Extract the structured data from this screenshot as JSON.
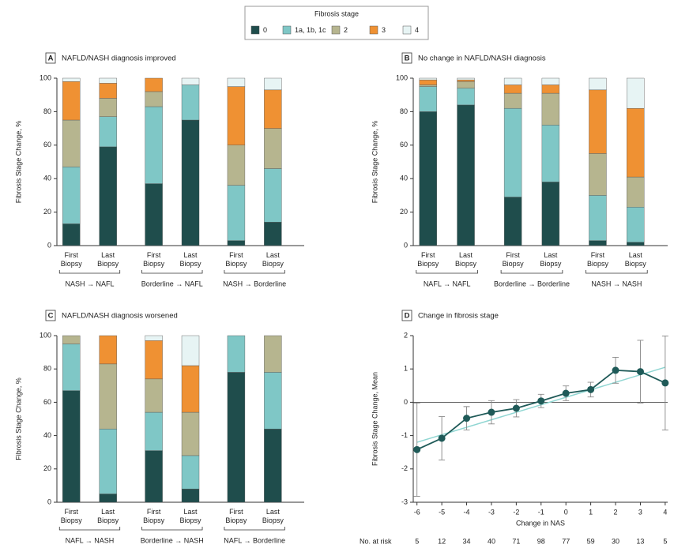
{
  "legend": {
    "title": "Fibrosis stage",
    "names": [
      "0",
      "1a, 1b, 1c",
      "2",
      "3",
      "4"
    ],
    "colors": [
      "#1f4d4c",
      "#7fc7c6",
      "#b6b58f",
      "#ef9133",
      "#e7f4f4"
    ]
  },
  "chart_data": [
    {
      "type": "stacked_bar",
      "panel": "A",
      "title": "NAFLD/NASH diagnosis improved",
      "ylabel": "Fibrosis Stage Change, %",
      "ylim": [
        0,
        100
      ],
      "yticks": [
        0,
        20,
        40,
        60,
        80,
        100
      ],
      "categories": [
        "First Biopsy",
        "Last Biopsy",
        "First Biopsy",
        "Last Biopsy",
        "First Biopsy",
        "Last Biopsy"
      ],
      "groups": [
        "NASH → NAFL",
        "Borderline → NAFL",
        "NASH → Borderline"
      ],
      "series": [
        {
          "values": [
            13,
            59,
            37,
            75,
            3,
            14
          ]
        },
        {
          "values": [
            34,
            18,
            46,
            21,
            33,
            32
          ]
        },
        {
          "values": [
            28,
            11,
            9,
            0,
            24,
            24
          ]
        },
        {
          "values": [
            23,
            9,
            8,
            0,
            35,
            23
          ]
        },
        {
          "values": [
            2,
            3,
            0,
            4,
            5,
            7
          ]
        }
      ]
    },
    {
      "type": "stacked_bar",
      "panel": "B",
      "title": "No change in NAFLD/NASH diagnosis",
      "ylabel": "Fibrosis Stage Change, %",
      "ylim": [
        0,
        100
      ],
      "yticks": [
        0,
        20,
        40,
        60,
        80,
        100
      ],
      "categories": [
        "First Biopsy",
        "Last Biopsy",
        "First Biopsy",
        "Last Biopsy",
        "First Biopsy",
        "Last Biopsy"
      ],
      "groups": [
        "NAFL → NAFL",
        "Borderline → Borderline",
        "NASH → NASH"
      ],
      "series": [
        {
          "values": [
            80,
            84,
            29,
            38,
            3,
            2
          ]
        },
        {
          "values": [
            15,
            10,
            53,
            34,
            27,
            21
          ]
        },
        {
          "values": [
            1,
            4,
            9,
            19,
            25,
            18
          ]
        },
        {
          "values": [
            3,
            1,
            5,
            5,
            38,
            41
          ]
        },
        {
          "values": [
            1,
            1,
            4,
            4,
            7,
            18
          ]
        }
      ]
    },
    {
      "type": "stacked_bar",
      "panel": "C",
      "title": "NAFLD/NASH diagnosis worsened",
      "ylabel": "Fibrosis Stage Change, %",
      "ylim": [
        0,
        100
      ],
      "yticks": [
        0,
        20,
        40,
        60,
        80,
        100
      ],
      "categories": [
        "First Biopsy",
        "Last Biopsy",
        "First Biopsy",
        "Last Biopsy",
        "First Biopsy",
        "Last Biopsy"
      ],
      "groups": [
        "NAFL → NASH",
        "Borderline → NASH",
        "NAFL → Borderline"
      ],
      "series": [
        {
          "values": [
            67,
            5,
            31,
            8,
            78,
            44
          ]
        },
        {
          "values": [
            28,
            39,
            23,
            20,
            22,
            34
          ]
        },
        {
          "values": [
            5,
            39,
            20,
            26,
            0,
            22
          ]
        },
        {
          "values": [
            0,
            17,
            23,
            28,
            0,
            0
          ]
        },
        {
          "values": [
            0,
            0,
            3,
            18,
            0,
            0
          ]
        }
      ]
    },
    {
      "type": "line",
      "panel": "D",
      "title": "Change in fibrosis stage",
      "ylabel": "Fibrosis Stage Change, Mean",
      "xlabel": "Change in NAS",
      "x": [
        -6,
        -5,
        -4,
        -3,
        -2,
        -1,
        0,
        1,
        2,
        3,
        4
      ],
      "values": [
        -1.42,
        -1.08,
        -0.48,
        -0.3,
        -0.18,
        0.04,
        0.27,
        0.38,
        0.96,
        0.92,
        0.58
      ],
      "errors": [
        1.4,
        0.65,
        0.35,
        0.35,
        0.26,
        0.2,
        0.22,
        0.22,
        0.39,
        0.94,
        1.41
      ],
      "color": "#1f5a58",
      "error_color": "#888888",
      "trend": {
        "x": [
          -6,
          4
        ],
        "values": [
          -1.2,
          1.05
        ],
        "color": "#8fd6d2"
      },
      "xlim": [
        -6.15,
        4.1
      ],
      "xticks": [
        -6,
        -5,
        -4,
        -3,
        -2,
        -1,
        0,
        1,
        2,
        3,
        4
      ],
      "ylim": [
        -3,
        2
      ],
      "yticks": [
        -3,
        -2,
        -1,
        0,
        1,
        2
      ],
      "risk_label": "No. at risk",
      "at_risk": [
        5,
        12,
        34,
        40,
        71,
        98,
        77,
        59,
        30,
        13,
        5
      ]
    }
  ]
}
